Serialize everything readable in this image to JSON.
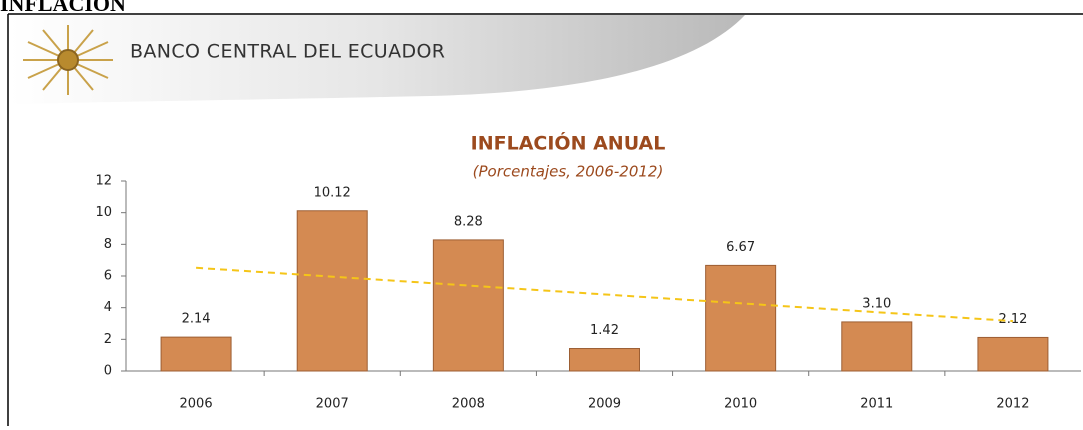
{
  "page_title": "INFLACIÓN",
  "header": {
    "institution": "BANCO CENTRAL DEL ECUADOR"
  },
  "chart_data": {
    "type": "bar",
    "title": "INFLACIÓN ANUAL",
    "subtitle": "(Porcentajes, 2006-2012)",
    "categories": [
      "2006",
      "2007",
      "2008",
      "2009",
      "2010",
      "2011",
      "2012"
    ],
    "values": [
      2.14,
      10.12,
      8.28,
      1.42,
      6.67,
      3.1,
      2.12
    ],
    "value_labels": [
      "2.14",
      "10.12",
      "8.28",
      "1.42",
      "6.67",
      "3.10",
      "2.12"
    ],
    "color": "#d48a52",
    "edge_color": "#9c5e33",
    "ylim": [
      0,
      12
    ],
    "yticks": [
      0,
      2,
      4,
      6,
      8,
      10,
      12
    ],
    "grid": false,
    "trendline": true,
    "trendline_color": "#f5c518"
  }
}
